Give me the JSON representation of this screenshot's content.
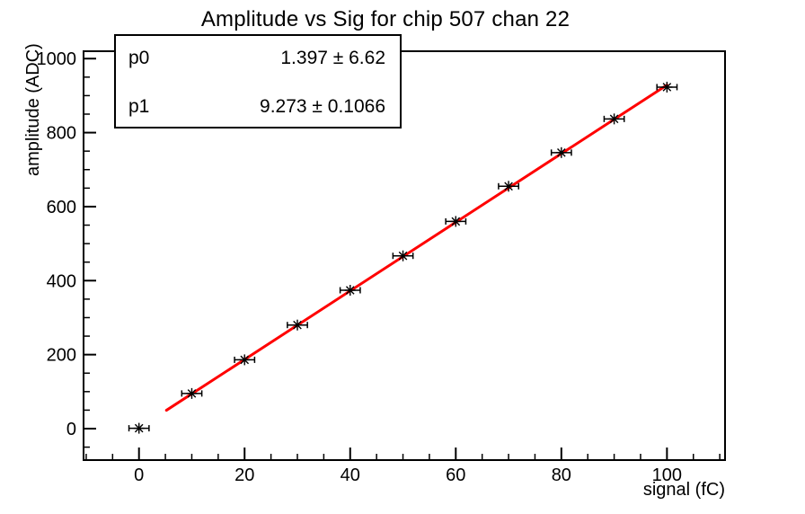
{
  "title": "Amplitude vs Sig for chip 507 chan 22",
  "stats_box": {
    "rows": [
      {
        "param": "p0",
        "value": "1.397 ± 6.62"
      },
      {
        "param": "p1",
        "value": "9.273 ± 0.1066"
      }
    ]
  },
  "chart_data": {
    "type": "scatter",
    "title": "Amplitude vs Sig for chip 507 chan 22",
    "xlabel": "signal (fC)",
    "ylabel": "amplitude (ADC)",
    "xlim": [
      -10.5,
      111
    ],
    "ylim": [
      -85,
      1020
    ],
    "grid": false,
    "legend": "none",
    "x_major_ticks": [
      0,
      20,
      40,
      60,
      80,
      100
    ],
    "x_minor_step": 5,
    "y_major_ticks": [
      0,
      200,
      400,
      600,
      800,
      1000
    ],
    "y_minor_step": 50,
    "points": {
      "x": [
        0,
        10,
        20,
        30,
        40,
        50,
        60,
        70,
        80,
        90,
        100
      ],
      "y": [
        1,
        95,
        186,
        280,
        374,
        467,
        560,
        655,
        746,
        837,
        923
      ],
      "xerr": 1.9,
      "marker": "star-8"
    },
    "fit": {
      "model": "p0 + p1*x",
      "p0": 1.397,
      "p0_err": 6.62,
      "p1": 9.273,
      "p1_err": 0.1066,
      "x_range": [
        5.2,
        100
      ]
    },
    "colors": {
      "marker": "#000000",
      "fit_line": "#ff0000",
      "frame": "#000000",
      "background": "#ffffff"
    }
  }
}
